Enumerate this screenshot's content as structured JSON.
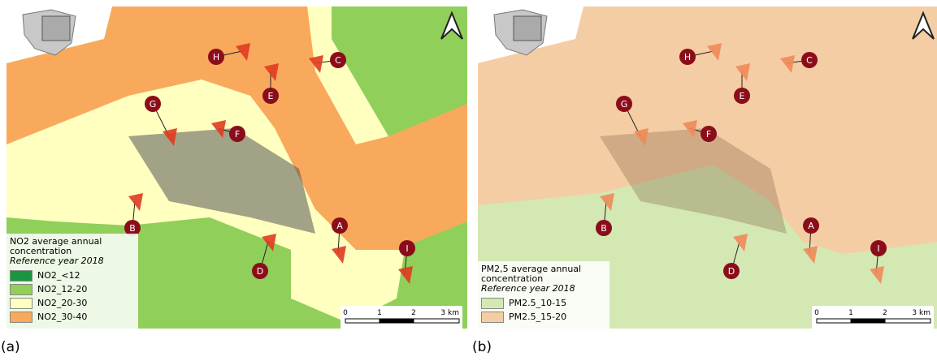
{
  "panels": [
    {
      "label": "(a)",
      "legend": {
        "title": "NO2 average annual concentration",
        "subtitle": "Reference year 2018",
        "items": [
          {
            "label": "NO2_<12",
            "color": "#1a9641"
          },
          {
            "label": "NO2_12-20",
            "color": "#8fcf5a"
          },
          {
            "label": "NO2_20-30",
            "color": "#ffffc0"
          },
          {
            "label": "NO2_30-40",
            "color": "#f9a95c"
          }
        ]
      },
      "scale": [
        "0",
        "1",
        "2",
        "3 km"
      ],
      "markers": [
        "A",
        "B",
        "C",
        "D",
        "E",
        "F",
        "G",
        "H",
        "I"
      ]
    },
    {
      "label": "(b)",
      "legend": {
        "title": "PM2,5 average annual concentration",
        "subtitle": "Reference year 2018",
        "items": [
          {
            "label": "PM2.5_10-15",
            "color": "#d3e8b3"
          },
          {
            "label": "PM2.5_15-20",
            "color": "#f4cda4"
          }
        ]
      },
      "scale": [
        "0",
        "1",
        "2",
        "3 km"
      ],
      "markers": [
        "A",
        "B",
        "C",
        "D",
        "E",
        "F",
        "G",
        "H",
        "I"
      ]
    }
  ]
}
